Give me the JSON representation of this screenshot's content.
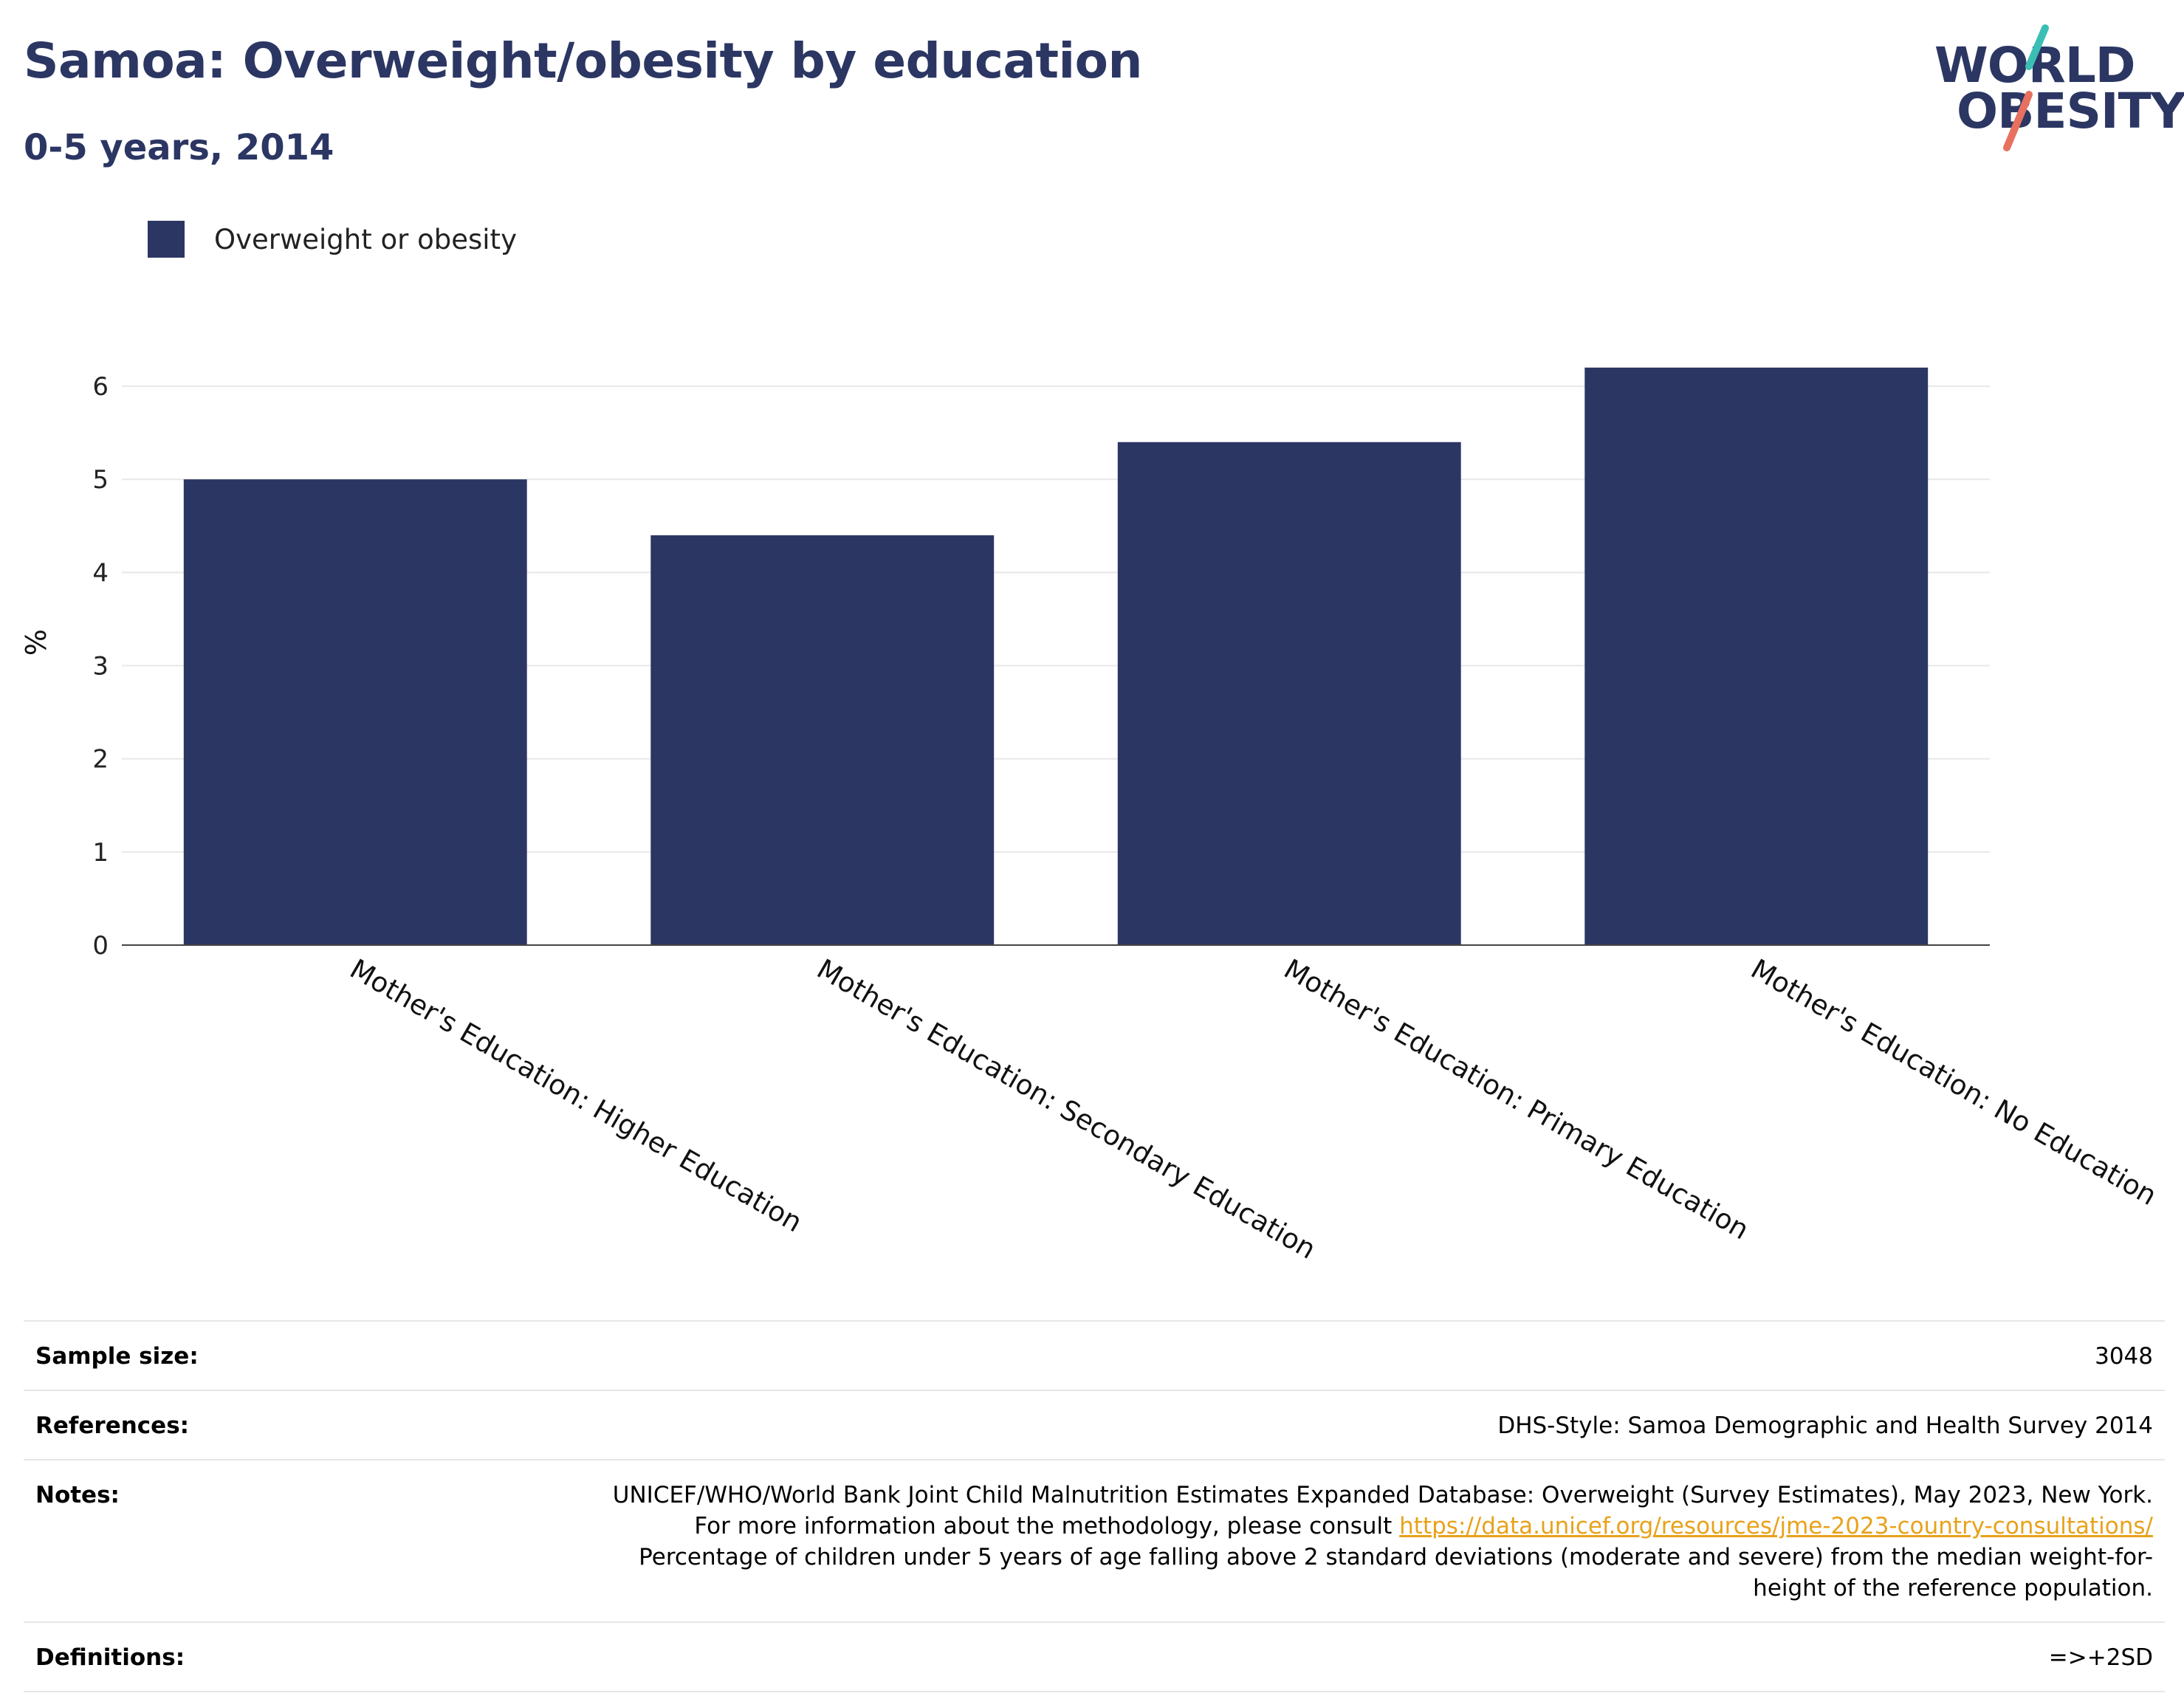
{
  "header": {
    "title": "Samoa: Overweight/obesity by education",
    "subtitle": "0-5 years, 2014"
  },
  "logo": {
    "line1": "WORLD",
    "line2": "OBESITY",
    "colors": {
      "text": "#2b3663",
      "teal": "#3bbfb4",
      "coral": "#e8705f"
    }
  },
  "legend": [
    {
      "label": "Overweight or obesity",
      "color": "#2b3663"
    }
  ],
  "chart_data": {
    "type": "bar",
    "title": "Samoa: Overweight/obesity by education",
    "subtitle": "0-5 years, 2014",
    "categories": [
      "Mother's Education: Higher Education",
      "Mother's Education: Secondary Education",
      "Mother's Education: Primary Education",
      "Mother's Education: No Education"
    ],
    "series": [
      {
        "name": "Overweight or obesity",
        "values": [
          5.0,
          4.4,
          5.4,
          6.2
        ],
        "color": "#2b3663"
      }
    ],
    "xlabel": "",
    "ylabel": "%",
    "ylim": [
      0,
      6.5
    ],
    "yticks": [
      0,
      1,
      2,
      3,
      4,
      5,
      6
    ],
    "grid": true,
    "legend_position": "top-left"
  },
  "meta": {
    "sample_size_label": "Sample size:",
    "sample_size_value": "3048",
    "references_label": "References:",
    "references_value": "DHS-Style: Samoa Demographic and Health Survey 2014",
    "notes_label": "Notes:",
    "notes_text_1": "UNICEF/WHO/World Bank Joint Child Malnutrition Estimates Expanded Database: Overweight (Survey Estimates), May 2023, New York. For more information about the methodology, please consult ",
    "notes_link": "https://data.unicef.org/resources/jme-2023-country-consultations/",
    "notes_text_2": " Percentage of children under 5 years of age falling above 2 standard deviations (moderate and severe) from the median weight-for-height of the reference population.",
    "definitions_label": "Definitions:",
    "definitions_value": "=>+2SD"
  }
}
